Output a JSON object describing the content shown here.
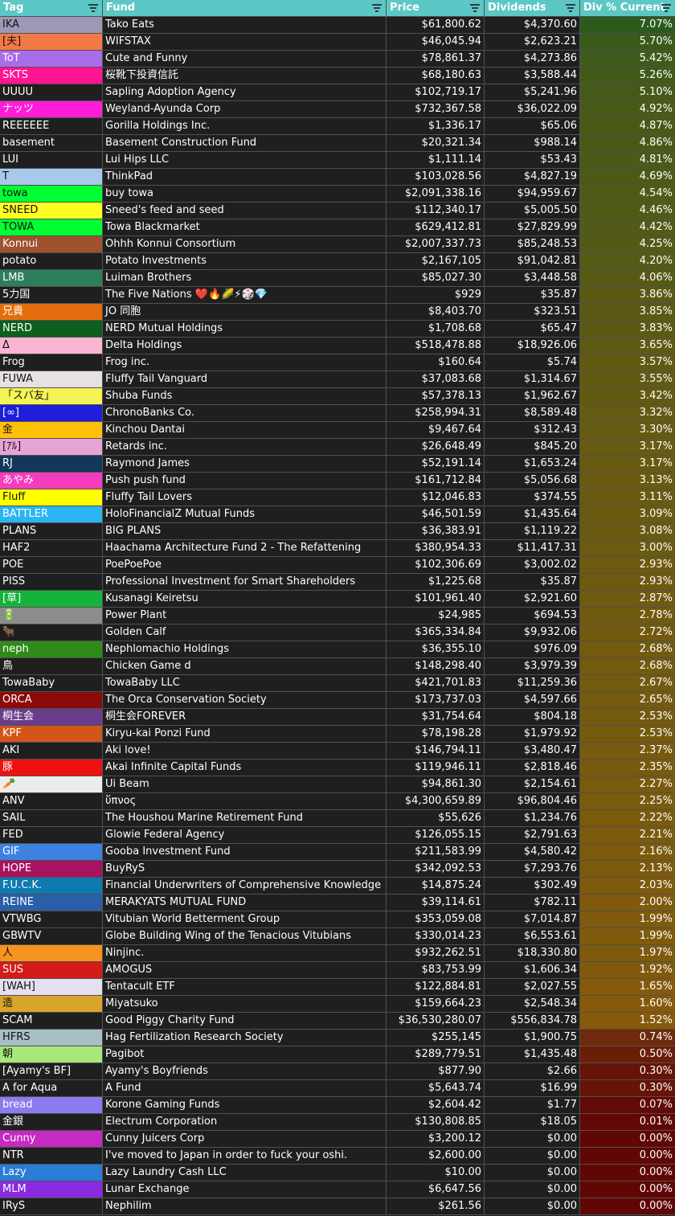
{
  "headers": {
    "tag": "Tag",
    "fund": "Fund",
    "price": "Price",
    "dividends": "Dividends",
    "pct": "Div % Current"
  },
  "rows": [
    {
      "tag": "IKA",
      "tag_bg": "#9e98b6",
      "fund": "Tako Eats",
      "price": "$61,800.62",
      "dividends": "$4,370.60",
      "pct": "7.07%",
      "pct_bg": "#2c5a1d"
    },
    {
      "tag": "[夫]",
      "tag_bg": "#f47a45",
      "fund": "WIFSTAX",
      "price": "$46,045.94",
      "dividends": "$2,623.21",
      "pct": "5.70%",
      "pct_bg": "#3a5a1a"
    },
    {
      "tag": "ToT",
      "tag_bg": "#a96de8",
      "fund": "Cute and Funny",
      "price": "$78,861.37",
      "dividends": "$4,273.86",
      "pct": "5.42%",
      "pct_bg": "#3f5a1a"
    },
    {
      "tag": "SKTS",
      "tag_bg": "#ff1493",
      "fund": "桜靴下投資信託",
      "price": "$68,180.63",
      "dividends": "$3,588.44",
      "pct": "5.26%",
      "pct_bg": "#425a18"
    },
    {
      "tag": "UUUU",
      "tag_bg": "#1f1f1f",
      "fund": "Sapling Adoption Agency",
      "price": "$102,719.17",
      "dividends": "$5,241.96",
      "pct": "5.10%",
      "pct_bg": "#455a18"
    },
    {
      "tag": "ナッツ",
      "tag_bg": "#ff1dd9",
      "fund": "Weyland-Ayunda Corp",
      "price": "$732,367.58",
      "dividends": "$36,022.09",
      "pct": "4.92%",
      "pct_bg": "#485a17"
    },
    {
      "tag": "REEEEEE",
      "tag_bg": "#1f1f1f",
      "fund": "Gorilla Holdings Inc.",
      "price": "$1,336.17",
      "dividends": "$65.06",
      "pct": "4.87%",
      "pct_bg": "#495a17"
    },
    {
      "tag": "basement",
      "tag_bg": "#1f1f1f",
      "fund": "Basement Construction Fund",
      "price": "$20,321.34",
      "dividends": "$988.14",
      "pct": "4.86%",
      "pct_bg": "#495a17"
    },
    {
      "tag": "LUI",
      "tag_bg": "#1f1f1f",
      "fund": "Lui Hips LLC",
      "price": "$1,111.14",
      "dividends": "$53.43",
      "pct": "4.81%",
      "pct_bg": "#4a5a17"
    },
    {
      "tag": "T",
      "tag_bg": "#a8c9ec",
      "fund": "ThinkPad",
      "price": "$103,028.56",
      "dividends": "$4,827.19",
      "pct": "4.69%",
      "pct_bg": "#4c5a16"
    },
    {
      "tag": "towa",
      "tag_bg": "#00ff33",
      "fund": "buy towa",
      "price": "$2,091,338.16",
      "dividends": "$94,959.67",
      "pct": "4.54%",
      "pct_bg": "#4f5a16"
    },
    {
      "tag": "SNEED",
      "tag_bg": "#ffff22",
      "fund": "Sneed's feed and seed",
      "price": "$112,340.17",
      "dividends": "$5,005.50",
      "pct": "4.46%",
      "pct_bg": "#505a16"
    },
    {
      "tag": "TOWA",
      "tag_bg": "#00ff33",
      "fund": "Towa Blackmarket",
      "price": "$629,412.81",
      "dividends": "$27,829.99",
      "pct": "4.42%",
      "pct_bg": "#515a16"
    },
    {
      "tag": "Konnui",
      "tag_bg": "#a0522d",
      "fund": "Ohhh Konnui Consortium",
      "price": "$2,007,337.73",
      "dividends": "$85,248.53",
      "pct": "4.25%",
      "pct_bg": "#545a15"
    },
    {
      "tag": "potato",
      "tag_bg": "#1f1f1f",
      "fund": "Potato Investments",
      "price": "$2,167,105",
      "dividends": "$91,042.81",
      "pct": "4.20%",
      "pct_bg": "#555a15"
    },
    {
      "tag": "LMB",
      "tag_bg": "#2e7d5b",
      "fund": "Luiman Brothers",
      "price": "$85,027.30",
      "dividends": "$3,448.58",
      "pct": "4.06%",
      "pct_bg": "#575a15"
    },
    {
      "tag": "5力国",
      "tag_bg": "#1f1f1f",
      "fund": "The Five Nations ❤️🔥🌽⚡🎲💎",
      "price": "$929",
      "dividends": "$35.87",
      "pct": "3.86%",
      "pct_bg": "#5b5a14"
    },
    {
      "tag": "兄貴",
      "tag_bg": "#e46e0e",
      "fund": "JO 同胞",
      "price": "$8,403.70",
      "dividends": "$323.51",
      "pct": "3.85%",
      "pct_bg": "#5b5a14"
    },
    {
      "tag": "NERD",
      "tag_bg": "#0d5f1e",
      "fund": "NERD Mutual Holdings",
      "price": "$1,708.68",
      "dividends": "$65.47",
      "pct": "3.83%",
      "pct_bg": "#5b5a14"
    },
    {
      "tag": "Δ",
      "tag_bg": "#f9b6d2",
      "fund": "Delta Holdings",
      "price": "$518,478.88",
      "dividends": "$18,926.06",
      "pct": "3.65%",
      "pct_bg": "#5e5a13"
    },
    {
      "tag": "Frog",
      "tag_bg": "#1f1f1f",
      "fund": "Frog inc.",
      "price": "$160.64",
      "dividends": "$5.74",
      "pct": "3.57%",
      "pct_bg": "#605a13"
    },
    {
      "tag": "FUWA",
      "tag_bg": "#e8e1e1",
      "fund": "Fluffy Tail Vanguard",
      "price": "$37,083.68",
      "dividends": "$1,314.67",
      "pct": "3.55%",
      "pct_bg": "#605a13"
    },
    {
      "tag": "「スバ友」",
      "tag_bg": "#f4f455",
      "fund": "Shuba Funds",
      "price": "$57,378.13",
      "dividends": "$1,962.67",
      "pct": "3.42%",
      "pct_bg": "#635a12"
    },
    {
      "tag": "[∞]",
      "tag_bg": "#1e1edc",
      "fund": "ChronoBanks Co.",
      "price": "$258,994.31",
      "dividends": "$8,589.48",
      "pct": "3.32%",
      "pct_bg": "#655a12"
    },
    {
      "tag": "金",
      "tag_bg": "#ffc107",
      "fund": "Kinchou Dantai",
      "price": "$9,467.64",
      "dividends": "$312.43",
      "pct": "3.30%",
      "pct_bg": "#655a12"
    },
    {
      "tag": "[ｱﾙ]",
      "tag_bg": "#e8a3d6",
      "fund": "Retards inc.",
      "price": "$26,648.49",
      "dividends": "$845.20",
      "pct": "3.17%",
      "pct_bg": "#685a11"
    },
    {
      "tag": "RJ",
      "tag_bg": "#13375a",
      "fund": "Raymond James",
      "price": "$52,191.14",
      "dividends": "$1,653.24",
      "pct": "3.17%",
      "pct_bg": "#685a11"
    },
    {
      "tag": "あやみ",
      "tag_bg": "#f53cbf",
      "fund": "Push push fund",
      "price": "$161,712.84",
      "dividends": "$5,056.68",
      "pct": "3.13%",
      "pct_bg": "#695a11"
    },
    {
      "tag": "Fluff",
      "tag_bg": "#ffff00",
      "fund": "Fluffy Tail Lovers",
      "price": "$12,046.83",
      "dividends": "$374.55",
      "pct": "3.11%",
      "pct_bg": "#695a11"
    },
    {
      "tag": "BATTLER",
      "tag_bg": "#2bb5f2",
      "fund": "HoloFinancialZ Mutual Funds",
      "price": "$46,501.59",
      "dividends": "$1,435.64",
      "pct": "3.09%",
      "pct_bg": "#6a5a11"
    },
    {
      "tag": "PLANS",
      "tag_bg": "#1f1f1f",
      "fund": "BIG PLANS",
      "price": "$36,383.91",
      "dividends": "$1,119.22",
      "pct": "3.08%",
      "pct_bg": "#6a5a11"
    },
    {
      "tag": "HAF2",
      "tag_bg": "#1f1f1f",
      "fund": "Haachama Architecture Fund 2 - The Refattening",
      "price": "$380,954.33",
      "dividends": "$11,417.31",
      "pct": "3.00%",
      "pct_bg": "#6b5a10"
    },
    {
      "tag": "POE",
      "tag_bg": "#1f1f1f",
      "fund": "PoePoePoe",
      "price": "$102,306.69",
      "dividends": "$3,002.02",
      "pct": "2.93%",
      "pct_bg": "#6d5a10"
    },
    {
      "tag": "PISS",
      "tag_bg": "#1f1f1f",
      "fund": "Professional Investment for Smart Shareholders",
      "price": "$1,225.68",
      "dividends": "$35.87",
      "pct": "2.93%",
      "pct_bg": "#6d5a10"
    },
    {
      "tag": "[草]",
      "tag_bg": "#14b43c",
      "fund": "Kusanagi Keiretsu",
      "price": "$101,961.40",
      "dividends": "$2,921.60",
      "pct": "2.87%",
      "pct_bg": "#6e5a10"
    },
    {
      "tag": "🔋",
      "tag_bg": "#8c8c8c",
      "fund": "Power Plant",
      "price": "$24,985",
      "dividends": "$694.53",
      "pct": "2.78%",
      "pct_bg": "#705a0f"
    },
    {
      "tag": "🐂",
      "tag_bg": "#1f1f1f",
      "fund": "Golden Calf",
      "price": "$365,334.84",
      "dividends": "$9,932.06",
      "pct": "2.72%",
      "pct_bg": "#715a0f"
    },
    {
      "tag": "neph",
      "tag_bg": "#2e8b1a",
      "fund": "Nephlomachio Holdings",
      "price": "$36,355.10",
      "dividends": "$976.09",
      "pct": "2.68%",
      "pct_bg": "#725a0f"
    },
    {
      "tag": "鳥",
      "tag_bg": "#1f1f1f",
      "fund": "Chicken Game d",
      "price": "$148,298.40",
      "dividends": "$3,979.39",
      "pct": "2.68%",
      "pct_bg": "#725a0f"
    },
    {
      "tag": "TowaBaby",
      "tag_bg": "#1f1f1f",
      "fund": "TowaBaby LLC",
      "price": "$421,701.83",
      "dividends": "$11,259.36",
      "pct": "2.67%",
      "pct_bg": "#725a0f"
    },
    {
      "tag": "ORCA",
      "tag_bg": "#8b0a0a",
      "fund": "The Orca Conservation Society",
      "price": "$173,737.03",
      "dividends": "$4,597.66",
      "pct": "2.65%",
      "pct_bg": "#735a0f"
    },
    {
      "tag": "桐生会",
      "tag_bg": "#6a3d8a",
      "fund": "桐生会FOREVER",
      "price": "$31,754.64",
      "dividends": "$804.18",
      "pct": "2.53%",
      "pct_bg": "#755a0e"
    },
    {
      "tag": "KPF",
      "tag_bg": "#d2561a",
      "fund": "Kiryu-kai Ponzi Fund",
      "price": "$78,198.28",
      "dividends": "$1,979.92",
      "pct": "2.53%",
      "pct_bg": "#755a0e"
    },
    {
      "tag": "AKI",
      "tag_bg": "#1f1f1f",
      "fund": "Aki love!",
      "price": "$146,794.11",
      "dividends": "$3,480.47",
      "pct": "2.37%",
      "pct_bg": "#785a0e"
    },
    {
      "tag": "豚",
      "tag_bg": "#ee1111",
      "fund": "Akai Infinite Capital Funds",
      "price": "$119,946.11",
      "dividends": "$2,818.46",
      "pct": "2.35%",
      "pct_bg": "#785a0e"
    },
    {
      "tag": "🥕",
      "tag_bg": "#ececec",
      "fund": "Ui Beam",
      "price": "$94,861.30",
      "dividends": "$2,154.61",
      "pct": "2.27%",
      "pct_bg": "#7a5a0d"
    },
    {
      "tag": "ANV",
      "tag_bg": "#1f1f1f",
      "fund": "ὕπνος",
      "price": "$4,300,659.89",
      "dividends": "$96,804.46",
      "pct": "2.25%",
      "pct_bg": "#7a5a0d"
    },
    {
      "tag": "SAIL",
      "tag_bg": "#1f1f1f",
      "fund": "The Houshou Marine Retirement Fund",
      "price": "$55,626",
      "dividends": "$1,234.76",
      "pct": "2.22%",
      "pct_bg": "#7b5a0d"
    },
    {
      "tag": "FED",
      "tag_bg": "#1f1f1f",
      "fund": "Glowie Federal Agency",
      "price": "$126,055.15",
      "dividends": "$2,791.63",
      "pct": "2.21%",
      "pct_bg": "#7b5a0d"
    },
    {
      "tag": "GIF",
      "tag_bg": "#3d82e0",
      "fund": "Gooba Investment Fund",
      "price": "$211,583.99",
      "dividends": "$4,580.42",
      "pct": "2.16%",
      "pct_bg": "#7c5a0d"
    },
    {
      "tag": "HOPE",
      "tag_bg": "#a8135f",
      "fund": "BuyRyS",
      "price": "$342,092.53",
      "dividends": "$7,293.76",
      "pct": "2.13%",
      "pct_bg": "#7c5a0d"
    },
    {
      "tag": "F.U.C.K.",
      "tag_bg": "#0e7ab0",
      "fund": "Financial Underwriters of Comprehensive Knowledge",
      "price": "$14,875.24",
      "dividends": "$302.49",
      "pct": "2.03%",
      "pct_bg": "#7e5a0c"
    },
    {
      "tag": "REINE",
      "tag_bg": "#2a5ea8",
      "fund": "MERAKYATS MUTUAL FUND",
      "price": "$39,114.61",
      "dividends": "$782.11",
      "pct": "2.00%",
      "pct_bg": "#7f5a0c"
    },
    {
      "tag": "VTWBG",
      "tag_bg": "#1f1f1f",
      "fund": "Vitubian World Betterment Group",
      "price": "$353,059.08",
      "dividends": "$7,014.87",
      "pct": "1.99%",
      "pct_bg": "#7f5a0c"
    },
    {
      "tag": "GBWTV",
      "tag_bg": "#1f1f1f",
      "fund": "Globe Building Wing of the Tenacious Vitubians",
      "price": "$330,014.23",
      "dividends": "$6,553.61",
      "pct": "1.99%",
      "pct_bg": "#7f5a0c"
    },
    {
      "tag": "人",
      "tag_bg": "#f7941d",
      "fund": "Ninjinc.",
      "price": "$932,262.51",
      "dividends": "$18,330.80",
      "pct": "1.97%",
      "pct_bg": "#7f5a0c"
    },
    {
      "tag": "SUS",
      "tag_bg": "#d41a1a",
      "fund": "AMOGUS",
      "price": "$83,753.99",
      "dividends": "$1,606.34",
      "pct": "1.92%",
      "pct_bg": "#805a0c"
    },
    {
      "tag": "[WAH]",
      "tag_bg": "#e6dff0",
      "fund": "Tentacult ETF",
      "price": "$122,884.81",
      "dividends": "$2,027.55",
      "pct": "1.65%",
      "pct_bg": "#855a0b"
    },
    {
      "tag": "造",
      "tag_bg": "#d9a62b",
      "fund": "Miyatsuko",
      "price": "$159,664.23",
      "dividends": "$2,548.34",
      "pct": "1.60%",
      "pct_bg": "#865a0b"
    },
    {
      "tag": "SCAM",
      "tag_bg": "#1f1f1f",
      "fund": "Good Piggy Charity Fund",
      "price": "$36,530,280.07",
      "dividends": "$556,834.78",
      "pct": "1.52%",
      "pct_bg": "#875a0b"
    },
    {
      "tag": "HFRS",
      "tag_bg": "#a7bfc5",
      "fund": "Hag Fertilization Research Society",
      "price": "$255,145",
      "dividends": "$1,900.75",
      "pct": "0.74%",
      "pct_bg": "#6e2a0a"
    },
    {
      "tag": "朝",
      "tag_bg": "#a8e87a",
      "fund": "Pagibot",
      "price": "$289,779.51",
      "dividends": "$1,435.48",
      "pct": "0.50%",
      "pct_bg": "#6a1e08"
    },
    {
      "tag": "[Ayamy's BF]",
      "tag_bg": "#1f1f1f",
      "fund": "Ayamy's Boyfriends",
      "price": "$877.90",
      "dividends": "$2.66",
      "pct": "0.30%",
      "pct_bg": "#661407"
    },
    {
      "tag": "A for Aqua",
      "tag_bg": "#1f1f1f",
      "fund": "A Fund",
      "price": "$5,643.74",
      "dividends": "$16.99",
      "pct": "0.30%",
      "pct_bg": "#661407"
    },
    {
      "tag": "bread",
      "tag_bg": "#8a7cf0",
      "fund": "Korone Gaming Funds",
      "price": "$2,604.42",
      "dividends": "$1.77",
      "pct": "0.07%",
      "pct_bg": "#620a06"
    },
    {
      "tag": "金銀",
      "tag_bg": "#1f1f1f",
      "fund": "Electrum Corporation",
      "price": "$130,808.85",
      "dividends": "$18.05",
      "pct": "0.01%",
      "pct_bg": "#600806"
    },
    {
      "tag": "Cunny",
      "tag_bg": "#c52ac2",
      "fund": "Cunny Juicers Corp",
      "price": "$3,200.12",
      "dividends": "$0.00",
      "pct": "0.00%",
      "pct_bg": "#600706"
    },
    {
      "tag": "NTR",
      "tag_bg": "#1f1f1f",
      "fund": "I've moved to Japan in order to fuck your oshi.",
      "price": "$2,600.00",
      "dividends": "$0.00",
      "pct": "0.00%",
      "pct_bg": "#600706"
    },
    {
      "tag": "Lazy",
      "tag_bg": "#2a7cd4",
      "fund": "Lazy Laundry Cash LLC",
      "price": "$10.00",
      "dividends": "$0.00",
      "pct": "0.00%",
      "pct_bg": "#600706"
    },
    {
      "tag": "MLM",
      "tag_bg": "#8a2be2",
      "fund": "Lunar Exchange",
      "price": "$6,647.56",
      "dividends": "$0.00",
      "pct": "0.00%",
      "pct_bg": "#600706"
    },
    {
      "tag": "IRyS",
      "tag_bg": "#1f1f1f",
      "fund": "Nephilim",
      "price": "$261.56",
      "dividends": "$0.00",
      "pct": "0.00%",
      "pct_bg": "#600706"
    }
  ]
}
